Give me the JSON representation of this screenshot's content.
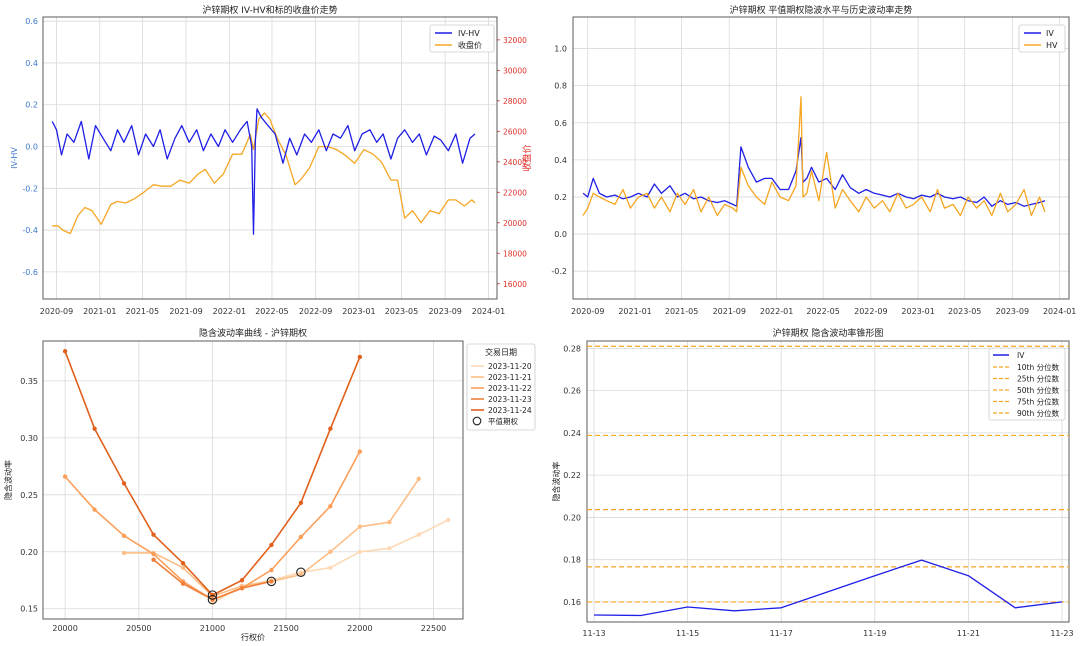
{
  "colors": {
    "grid": "#d9d9d9",
    "axis_frame": "#333333",
    "blue": "#1f1fe6",
    "orange": "#f5a623",
    "right_axis_red": "#e0322b",
    "left_axis_blue": "#3a78c9"
  },
  "chart_data": [
    {
      "id": "tl",
      "type": "line",
      "title": "沪锌期权 IV-HV和标的收盘价走势",
      "xlabel": "",
      "ylabel": "IV-HV",
      "y2label": "收盘价",
      "x_range": [
        "2020-07-25",
        "2024-01-25"
      ],
      "xticks": [
        "2020-09",
        "2021-01",
        "2021-05",
        "2021-09",
        "2022-01",
        "2022-05",
        "2022-09",
        "2023-01",
        "2023-05",
        "2023-09",
        "2024-01"
      ],
      "ylim": [
        -0.73,
        0.62
      ],
      "yticks": [
        -0.6,
        -0.4,
        -0.2,
        0.0,
        0.2,
        0.4,
        0.6
      ],
      "ytick_labels": [
        "-0.6",
        "-0.4",
        "-0.2",
        "0.0",
        "0.2",
        "0.4",
        "0.6"
      ],
      "y2lim": [
        15000,
        33500
      ],
      "y2ticks": [
        16000,
        18000,
        20000,
        22000,
        24000,
        26000,
        28000,
        30000,
        32000
      ],
      "y2tick_labels": [
        "16000",
        "18000",
        "20000",
        "22000",
        "24000",
        "26000",
        "28000",
        "30000",
        "32000"
      ],
      "legend_position": "top-right",
      "grid": true,
      "series": [
        {
          "name": "IV-HV",
          "axis": "left",
          "color": "#1f1fe6",
          "x": [
            "2020-08-20",
            "2020-09-01",
            "2020-09-15",
            "2020-10-01",
            "2020-10-20",
            "2020-11-10",
            "2020-12-01",
            "2020-12-20",
            "2021-01-10",
            "2021-02-01",
            "2021-02-20",
            "2021-03-10",
            "2021-04-01",
            "2021-04-20",
            "2021-05-10",
            "2021-06-01",
            "2021-06-20",
            "2021-07-10",
            "2021-08-01",
            "2021-08-20",
            "2021-09-10",
            "2021-10-01",
            "2021-10-20",
            "2021-11-10",
            "2021-12-01",
            "2021-12-20",
            "2022-01-10",
            "2022-02-01",
            "2022-02-20",
            "2022-03-05",
            "2022-03-10",
            "2022-03-15",
            "2022-03-20",
            "2022-04-01",
            "2022-04-20",
            "2022-05-10",
            "2022-06-01",
            "2022-06-20",
            "2022-07-10",
            "2022-08-01",
            "2022-08-20",
            "2022-09-10",
            "2022-10-01",
            "2022-10-20",
            "2022-11-10",
            "2022-12-01",
            "2022-12-20",
            "2023-01-10",
            "2023-02-01",
            "2023-02-20",
            "2023-03-10",
            "2023-04-01",
            "2023-04-20",
            "2023-05-10",
            "2023-06-01",
            "2023-06-20",
            "2023-07-10",
            "2023-08-01",
            "2023-08-20",
            "2023-09-10",
            "2023-10-01",
            "2023-10-20",
            "2023-11-10",
            "2023-11-24"
          ],
          "values": [
            0.12,
            0.08,
            -0.04,
            0.06,
            0.02,
            0.12,
            -0.06,
            0.1,
            0.04,
            -0.02,
            0.08,
            0.02,
            0.1,
            -0.04,
            0.06,
            0.0,
            0.08,
            -0.06,
            0.04,
            0.1,
            0.02,
            0.08,
            -0.02,
            0.06,
            0.0,
            0.08,
            0.02,
            0.08,
            0.12,
            0.0,
            -0.42,
            0.02,
            0.18,
            0.14,
            0.1,
            0.06,
            -0.08,
            0.04,
            -0.04,
            0.06,
            0.02,
            0.08,
            -0.02,
            0.06,
            0.04,
            0.1,
            -0.02,
            0.06,
            0.08,
            0.02,
            0.06,
            -0.06,
            0.04,
            0.08,
            0.02,
            0.06,
            -0.04,
            0.05,
            0.03,
            -0.02,
            0.06,
            -0.08,
            0.04,
            0.06
          ]
        },
        {
          "name": "收盘价",
          "axis": "right",
          "color": "#f5a623",
          "x": [
            "2020-08-20",
            "2020-09-05",
            "2020-09-20",
            "2020-10-10",
            "2020-11-01",
            "2020-11-20",
            "2020-12-10",
            "2021-01-05",
            "2021-02-01",
            "2021-02-20",
            "2021-03-15",
            "2021-04-10",
            "2021-05-05",
            "2021-06-01",
            "2021-06-25",
            "2021-07-20",
            "2021-08-15",
            "2021-09-10",
            "2021-10-05",
            "2021-10-25",
            "2021-11-20",
            "2021-12-15",
            "2022-01-10",
            "2022-02-05",
            "2022-03-01",
            "2022-03-10",
            "2022-03-25",
            "2022-04-10",
            "2022-04-25",
            "2022-05-15",
            "2022-06-10",
            "2022-07-05",
            "2022-07-20",
            "2022-08-15",
            "2022-09-10",
            "2022-10-05",
            "2022-10-30",
            "2022-11-25",
            "2022-12-20",
            "2023-01-15",
            "2023-02-10",
            "2023-03-05",
            "2023-04-01",
            "2023-04-20",
            "2023-05-10",
            "2023-06-01",
            "2023-06-25",
            "2023-07-20",
            "2023-08-15",
            "2023-09-10",
            "2023-10-01",
            "2023-10-25",
            "2023-11-15",
            "2023-11-24"
          ],
          "values": [
            19800,
            19800,
            19500,
            19300,
            20500,
            21000,
            20800,
            19900,
            21200,
            21400,
            21300,
            21600,
            22000,
            22500,
            22400,
            22400,
            22800,
            22600,
            23200,
            23500,
            22600,
            23200,
            24500,
            24500,
            25800,
            24800,
            26800,
            27200,
            26800,
            25600,
            24400,
            22500,
            22800,
            23600,
            25000,
            25000,
            24800,
            24400,
            23900,
            24800,
            24500,
            24000,
            22800,
            22800,
            20300,
            20800,
            20000,
            20800,
            20600,
            21500,
            21500,
            21100,
            21500,
            21300
          ]
        }
      ]
    },
    {
      "id": "tr",
      "type": "line",
      "title": "沪锌期权 平值期权隐波水平与历史波动率走势",
      "xlabel": "",
      "ylabel": "",
      "x_range": [
        "2020-07-25",
        "2024-01-25"
      ],
      "xticks": [
        "2020-09",
        "2021-01",
        "2021-05",
        "2021-09",
        "2022-01",
        "2022-05",
        "2022-09",
        "2023-01",
        "2023-05",
        "2023-09",
        "2024-01"
      ],
      "ylim": [
        -0.35,
        1.17
      ],
      "yticks": [
        -0.2,
        0.0,
        0.2,
        0.4,
        0.6,
        0.8,
        1.0
      ],
      "ytick_labels": [
        "-0.2",
        "0.0",
        "0.2",
        "0.4",
        "0.6",
        "0.8",
        "1.0"
      ],
      "legend_position": "top-right",
      "grid": true,
      "series": [
        {
          "name": "IV",
          "color": "#1f1fe6",
          "x": [
            "2020-08-20",
            "2020-09-01",
            "2020-09-15",
            "2020-10-01",
            "2020-10-20",
            "2020-11-10",
            "2020-12-01",
            "2020-12-20",
            "2021-01-10",
            "2021-02-01",
            "2021-02-20",
            "2021-03-10",
            "2021-04-01",
            "2021-04-20",
            "2021-05-10",
            "2021-06-01",
            "2021-06-20",
            "2021-07-10",
            "2021-08-01",
            "2021-08-20",
            "2021-09-10",
            "2021-09-20",
            "2021-10-01",
            "2021-10-20",
            "2021-11-10",
            "2021-12-01",
            "2021-12-20",
            "2022-01-10",
            "2022-02-01",
            "2022-02-20",
            "2022-03-05",
            "2022-03-10",
            "2022-03-20",
            "2022-04-01",
            "2022-04-20",
            "2022-05-10",
            "2022-06-01",
            "2022-06-20",
            "2022-07-10",
            "2022-08-01",
            "2022-08-20",
            "2022-09-10",
            "2022-10-01",
            "2022-10-20",
            "2022-11-10",
            "2022-12-01",
            "2022-12-20",
            "2023-01-10",
            "2023-02-01",
            "2023-02-20",
            "2023-03-10",
            "2023-04-01",
            "2023-04-20",
            "2023-05-10",
            "2023-06-01",
            "2023-06-20",
            "2023-07-10",
            "2023-08-01",
            "2023-08-20",
            "2023-09-10",
            "2023-10-01",
            "2023-10-20",
            "2023-11-10",
            "2023-11-24"
          ],
          "values": [
            0.22,
            0.2,
            0.3,
            0.22,
            0.2,
            0.21,
            0.19,
            0.2,
            0.22,
            0.2,
            0.27,
            0.22,
            0.26,
            0.2,
            0.22,
            0.19,
            0.2,
            0.18,
            0.17,
            0.18,
            0.16,
            0.15,
            0.47,
            0.36,
            0.28,
            0.3,
            0.3,
            0.24,
            0.24,
            0.34,
            0.52,
            0.28,
            0.3,
            0.36,
            0.28,
            0.3,
            0.24,
            0.32,
            0.25,
            0.22,
            0.24,
            0.22,
            0.21,
            0.2,
            0.22,
            0.2,
            0.19,
            0.21,
            0.2,
            0.22,
            0.2,
            0.19,
            0.2,
            0.18,
            0.17,
            0.2,
            0.15,
            0.18,
            0.16,
            0.17,
            0.15,
            0.16,
            0.17,
            0.18
          ]
        },
        {
          "name": "HV",
          "color": "#f5a623",
          "x": [
            "2020-08-20",
            "2020-09-01",
            "2020-09-15",
            "2020-10-01",
            "2020-10-20",
            "2020-11-10",
            "2020-12-01",
            "2020-12-20",
            "2021-01-10",
            "2021-02-01",
            "2021-02-20",
            "2021-03-10",
            "2021-04-01",
            "2021-04-20",
            "2021-05-10",
            "2021-06-01",
            "2021-06-20",
            "2021-07-10",
            "2021-08-01",
            "2021-08-20",
            "2021-09-10",
            "2021-09-20",
            "2021-10-01",
            "2021-10-20",
            "2021-11-10",
            "2021-12-01",
            "2021-12-20",
            "2022-01-10",
            "2022-02-01",
            "2022-02-20",
            "2022-03-05",
            "2022-03-10",
            "2022-03-20",
            "2022-04-01",
            "2022-04-20",
            "2022-05-10",
            "2022-06-01",
            "2022-06-20",
            "2022-07-10",
            "2022-08-01",
            "2022-08-20",
            "2022-09-10",
            "2022-10-01",
            "2022-10-20",
            "2022-11-10",
            "2022-12-01",
            "2022-12-20",
            "2023-01-10",
            "2023-02-01",
            "2023-02-20",
            "2023-03-10",
            "2023-04-01",
            "2023-04-20",
            "2023-05-10",
            "2023-06-01",
            "2023-06-20",
            "2023-07-10",
            "2023-08-01",
            "2023-08-20",
            "2023-09-10",
            "2023-10-01",
            "2023-10-20",
            "2023-11-10",
            "2023-11-24"
          ],
          "values": [
            0.1,
            0.14,
            0.22,
            0.2,
            0.18,
            0.16,
            0.24,
            0.14,
            0.2,
            0.22,
            0.14,
            0.2,
            0.12,
            0.22,
            0.16,
            0.24,
            0.12,
            0.2,
            0.1,
            0.16,
            0.14,
            0.12,
            0.36,
            0.26,
            0.2,
            0.16,
            0.28,
            0.2,
            0.18,
            0.26,
            0.74,
            0.2,
            0.22,
            0.34,
            0.18,
            0.44,
            0.14,
            0.24,
            0.18,
            0.12,
            0.2,
            0.14,
            0.18,
            0.12,
            0.22,
            0.14,
            0.16,
            0.2,
            0.12,
            0.24,
            0.14,
            0.16,
            0.1,
            0.2,
            0.14,
            0.18,
            0.1,
            0.22,
            0.12,
            0.16,
            0.24,
            0.1,
            0.2,
            0.12
          ]
        }
      ]
    },
    {
      "id": "bl",
      "type": "line",
      "title": "隐含波动率曲线 - 沪锌期权",
      "xlabel": "行权价",
      "ylabel": "隐含波动率",
      "xlim": [
        19850,
        22700
      ],
      "xticks": [
        20000,
        20500,
        21000,
        21500,
        22000,
        22500
      ],
      "xtick_labels": [
        "20000",
        "20500",
        "21000",
        "21500",
        "22000",
        "22500"
      ],
      "ylim": [
        0.141,
        0.385
      ],
      "yticks": [
        0.15,
        0.2,
        0.25,
        0.3,
        0.35
      ],
      "ytick_labels": [
        "0.15",
        "0.20",
        "0.25",
        "0.30",
        "0.35"
      ],
      "legend_title": "交易日期",
      "legend_position": "top-right outside",
      "atm_label": "平值期权",
      "grid": true,
      "series": [
        {
          "name": "2023-11-20",
          "color": "#fdd9b5",
          "x": [
            21000,
            21200,
            21400,
            21600,
            21800,
            22000,
            22200,
            22400,
            22600
          ],
          "values": [
            0.155,
            0.17,
            0.175,
            0.182,
            0.186,
            0.2,
            0.203,
            0.215,
            0.228
          ]
        },
        {
          "name": "2023-11-21",
          "color": "#fdbd85",
          "x": [
            20400,
            20600,
            20800,
            21000,
            21200,
            21400,
            21600,
            21800,
            22000,
            22200,
            22400
          ],
          "values": [
            0.199,
            0.199,
            0.186,
            0.161,
            0.17,
            0.174,
            0.18,
            0.2,
            0.222,
            0.226,
            0.264
          ]
        },
        {
          "name": "2023-11-22",
          "color": "#fb9e59",
          "x": [
            20000,
            20200,
            20400,
            20600,
            20800,
            21000,
            21200,
            21400,
            21600,
            21800,
            22000
          ],
          "values": [
            0.266,
            0.237,
            0.214,
            0.198,
            0.174,
            0.158,
            0.168,
            0.184,
            0.213,
            0.24,
            0.288
          ]
        },
        {
          "name": "2023-11-23",
          "color": "#f0803a",
          "x": [
            20600,
            20800,
            21000,
            21200,
            21400
          ],
          "values": [
            0.193,
            0.172,
            0.158,
            0.168,
            0.174
          ]
        },
        {
          "name": "2023-11-24",
          "color": "#e0601c",
          "x": [
            20000,
            20200,
            20400,
            20600,
            20800,
            21000,
            21200,
            21400,
            21600,
            21800,
            22000
          ],
          "values": [
            0.376,
            0.308,
            0.26,
            0.215,
            0.19,
            0.162,
            0.175,
            0.206,
            0.243,
            0.308,
            0.371
          ]
        }
      ],
      "atm_points": [
        {
          "x": 21000,
          "y": 0.158
        },
        {
          "x": 21000,
          "y": 0.162
        },
        {
          "x": 21400,
          "y": 0.174
        },
        {
          "x": 21600,
          "y": 0.182
        }
      ]
    },
    {
      "id": "br",
      "type": "line",
      "title": "沪锌期权 隐含波动率锥形图",
      "xlabel": "",
      "ylabel": "隐含波动率",
      "x": [
        "11-13",
        "11-14",
        "11-15",
        "11-16",
        "11-17",
        "11-18",
        "11-19",
        "11-20",
        "11-21",
        "11-22",
        "11-23"
      ],
      "xticks": [
        "11-13",
        "11-15",
        "11-17",
        "11-19",
        "11-21",
        "11-23"
      ],
      "ylim": [
        0.1505,
        0.2835
      ],
      "yticks": [
        0.16,
        0.18,
        0.2,
        0.22,
        0.24,
        0.26,
        0.28
      ],
      "ytick_labels": [
        "0.16",
        "0.18",
        "0.20",
        "0.22",
        "0.24",
        "0.26",
        "0.28"
      ],
      "legend_position": "top-right",
      "grid": true,
      "series": [
        {
          "name": "IV",
          "color": "#1f1fe6",
          "values": [
            0.1538,
            0.1536,
            0.1576,
            0.1558,
            0.1572,
            0.1648,
            0.1724,
            0.1798,
            0.1724,
            0.1572,
            0.16
          ]
        }
      ],
      "percentiles": [
        {
          "name": "10th 分位数",
          "value": 0.16
        },
        {
          "name": "25th 分位数",
          "value": 0.1766
        },
        {
          "name": "50th 分位数",
          "value": 0.2037
        },
        {
          "name": "75th 分位数",
          "value": 0.2388
        },
        {
          "name": "90th 分位数",
          "value": 0.281
        }
      ]
    }
  ]
}
